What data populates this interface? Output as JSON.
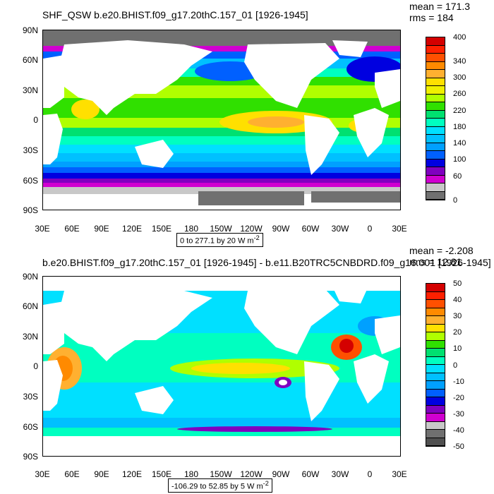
{
  "top": {
    "title": "SHF_QSW b.e20.BHIST.f09_g17.20thC.157_01 [1926-1945]",
    "mean": "mean = 171.3",
    "rms": "rms = 184",
    "info": "0 to 277.1 by 20  W m",
    "info_sup": "-2",
    "lat_labels": [
      "90N",
      "60N",
      "30N",
      "0",
      "30S",
      "60S",
      "90S"
    ],
    "lon_labels": [
      "30E",
      "60E",
      "90E",
      "120E",
      "150E",
      "180",
      "150W",
      "120W",
      "90W",
      "60W",
      "30W",
      "0",
      "30E"
    ],
    "colorbar_labels": [
      "400",
      "340",
      "300",
      "260",
      "220",
      "180",
      "140",
      "100",
      "60",
      "0"
    ],
    "colorbar_colors": [
      "#d40000",
      "#ff2000",
      "#ff5000",
      "#ff8a00",
      "#ffb030",
      "#ffe000",
      "#f0f000",
      "#b0ff00",
      "#30e000",
      "#00e070",
      "#00ffc0",
      "#00e0ff",
      "#00c0ff",
      "#00a0ff",
      "#0060ff",
      "#0000e0",
      "#8000c0",
      "#d000d0",
      "#c8c8c8",
      "#707070"
    ]
  },
  "bottom": {
    "title": "b.e20.BHIST.f09_g17.20thC.157_01 [1926-1945] - b.e11.B20TRC5CNBDRD.f09_g16.001 [1926-1945]",
    "mean": "mean = -2.208",
    "rms": "rms = 12.81",
    "info": "-106.29 to 52.85 by 5  W m",
    "info_sup": "-2",
    "lat_labels": [
      "90N",
      "60N",
      "30N",
      "0",
      "30S",
      "60S",
      "90S"
    ],
    "lon_labels": [
      "30E",
      "60E",
      "90E",
      "120E",
      "150E",
      "180",
      "150W",
      "120W",
      "90W",
      "60W",
      "30W",
      "0",
      "30E"
    ],
    "colorbar_labels": [
      "50",
      "40",
      "30",
      "20",
      "10",
      "0",
      "-10",
      "-20",
      "-30",
      "-40",
      "-50"
    ],
    "colorbar_colors": [
      "#d40000",
      "#ff2000",
      "#ff5000",
      "#ff8a00",
      "#ffb030",
      "#ffe000",
      "#b0ff00",
      "#30e000",
      "#00e070",
      "#00ffc0",
      "#00e0ff",
      "#00c0ff",
      "#00a0ff",
      "#0060ff",
      "#0000e0",
      "#8000c0",
      "#d000d0",
      "#c8c8c8",
      "#707070",
      "#505050"
    ]
  }
}
